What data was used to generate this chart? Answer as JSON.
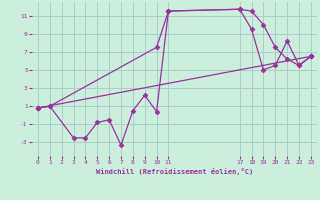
{
  "bg_color": "#cceedd",
  "grid_color": "#aacccc",
  "line_color": "#993399",
  "marker_color": "#993399",
  "xlabel": "Windchill (Refroidissement éolien,°C)",
  "xlabel_color": "#993399",
  "tick_color": "#993399",
  "ylim": [
    -4.5,
    12.5
  ],
  "xlim": [
    -0.5,
    23.5
  ],
  "yticks": [
    -3,
    -1,
    1,
    3,
    5,
    7,
    9,
    11
  ],
  "xticks": [
    0,
    1,
    2,
    3,
    4,
    5,
    6,
    7,
    8,
    9,
    10,
    11,
    17,
    18,
    19,
    20,
    21,
    22,
    23
  ],
  "line1_x": [
    0,
    1,
    3,
    4,
    5,
    6,
    7,
    8,
    9,
    10,
    11,
    17,
    18,
    19,
    20,
    21,
    22,
    23
  ],
  "line1_y": [
    0.8,
    1.0,
    -2.5,
    -2.5,
    -0.8,
    -0.5,
    -3.3,
    0.5,
    2.2,
    0.4,
    11.5,
    11.7,
    11.5,
    10.0,
    7.5,
    6.2,
    5.5,
    6.5
  ],
  "line2_x": [
    0,
    23
  ],
  "line2_y": [
    0.8,
    6.5
  ],
  "line3_x": [
    0,
    1,
    10,
    11,
    17,
    18,
    19,
    20,
    21,
    22,
    23
  ],
  "line3_y": [
    0.8,
    1.0,
    7.5,
    11.5,
    11.7,
    9.5,
    5.0,
    5.5,
    8.2,
    5.5,
    6.5
  ]
}
